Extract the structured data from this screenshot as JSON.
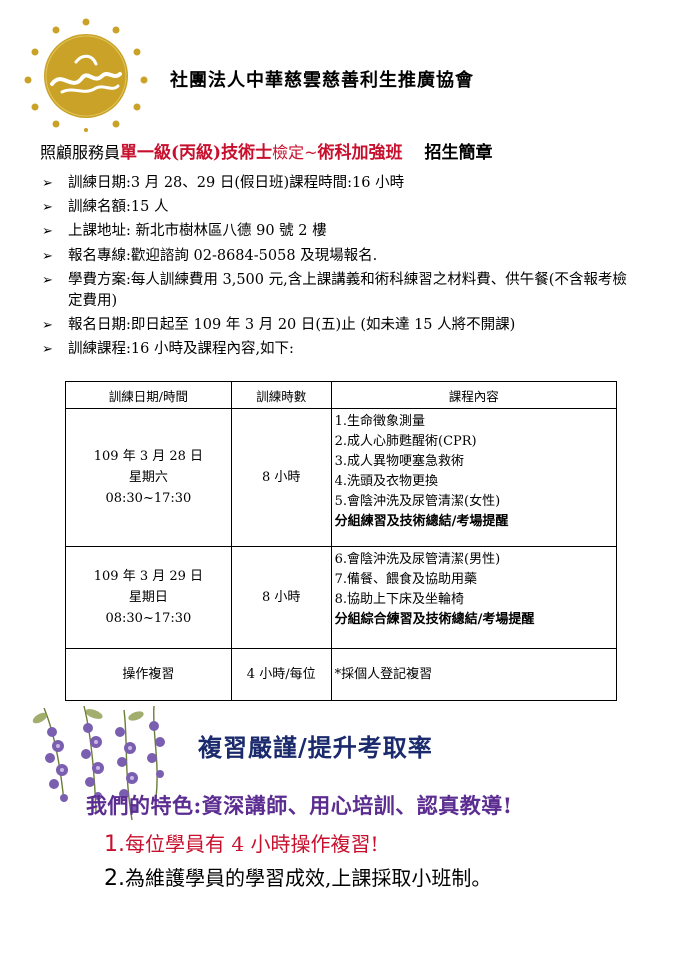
{
  "header": {
    "org_name": "社團法人中華慈雲慈善利生推廣協會",
    "logo_icon": "lotus-sun-logo"
  },
  "headline": {
    "prefix": "照顧服務員",
    "level": "單一級(丙級)技術士",
    "exam": "檢定~",
    "course": "術科加強班",
    "title": "招生簡章"
  },
  "bullets": [
    {
      "text": "訓練日期:3 月 28、29 日(假日班)課程時間:16 小時"
    },
    {
      "text": "訓練名額:15 人"
    },
    {
      "text": "上課地址: 新北市樹林區八德 90 號 2 樓"
    },
    {
      "text": "報名專線:歡迎諮詢 02-8684-5058 及現場報名."
    },
    {
      "text": "學費方案:每人訓練費用 3,500 元,含上課講義和術科練習之材料費、供午餐(不含報考檢定費用)"
    },
    {
      "text": "報名日期:即日起至 109 年 3 月 20 日(五)止 (如未達 15 人將不開課)"
    },
    {
      "text": "訓練課程:16 小時及課程內容,如下:"
    }
  ],
  "table": {
    "headers": [
      "訓練日期/時間",
      "訓練時數",
      "課程內容"
    ],
    "rows": [
      {
        "date": "109 年 3 月 28 日",
        "weekday": "星期六",
        "time": "08:30~17:30",
        "hours": "8 小時",
        "items": [
          "1.生命徵象測量",
          "2.成人心肺甦醒術(CPR)",
          "3.成人異物哽塞急救術",
          "4.洗頭及衣物更換",
          "5.會陰沖洗及尿管清潔(女性)"
        ],
        "summary": "分組練習及技術總結/考場提醒"
      },
      {
        "date": "109 年 3 月 29 日",
        "weekday": "星期日",
        "time": "08:30~17:30",
        "hours": "8 小時",
        "items": [
          "6.會陰沖洗及尿管清潔(男性)",
          "7.備餐、餵食及協助用藥",
          "8.協助上下床及坐輪椅"
        ],
        "summary": "分組綜合練習及技術總結/考場提醒"
      },
      {
        "date": "操作複習",
        "hours": "4 小時/每位",
        "note": "*採個人登記複習"
      }
    ]
  },
  "promo": {
    "review": "複習嚴謹/提升考取率",
    "feature": "我們的特色:資深講師、用心培訓、認真教導!",
    "point1_num": "1.",
    "point1_text": "每位學員有 4 小時操作複習!",
    "point2_num": "2.",
    "point2_text": "為維護學員的學習成效,上課採取小班制。",
    "flower_icon": "wisteria-flower-decoration"
  },
  "colors": {
    "red": "#c8102e",
    "navy": "#1a2a6c",
    "purple": "#5c2d91",
    "gold": "#c9a227"
  }
}
